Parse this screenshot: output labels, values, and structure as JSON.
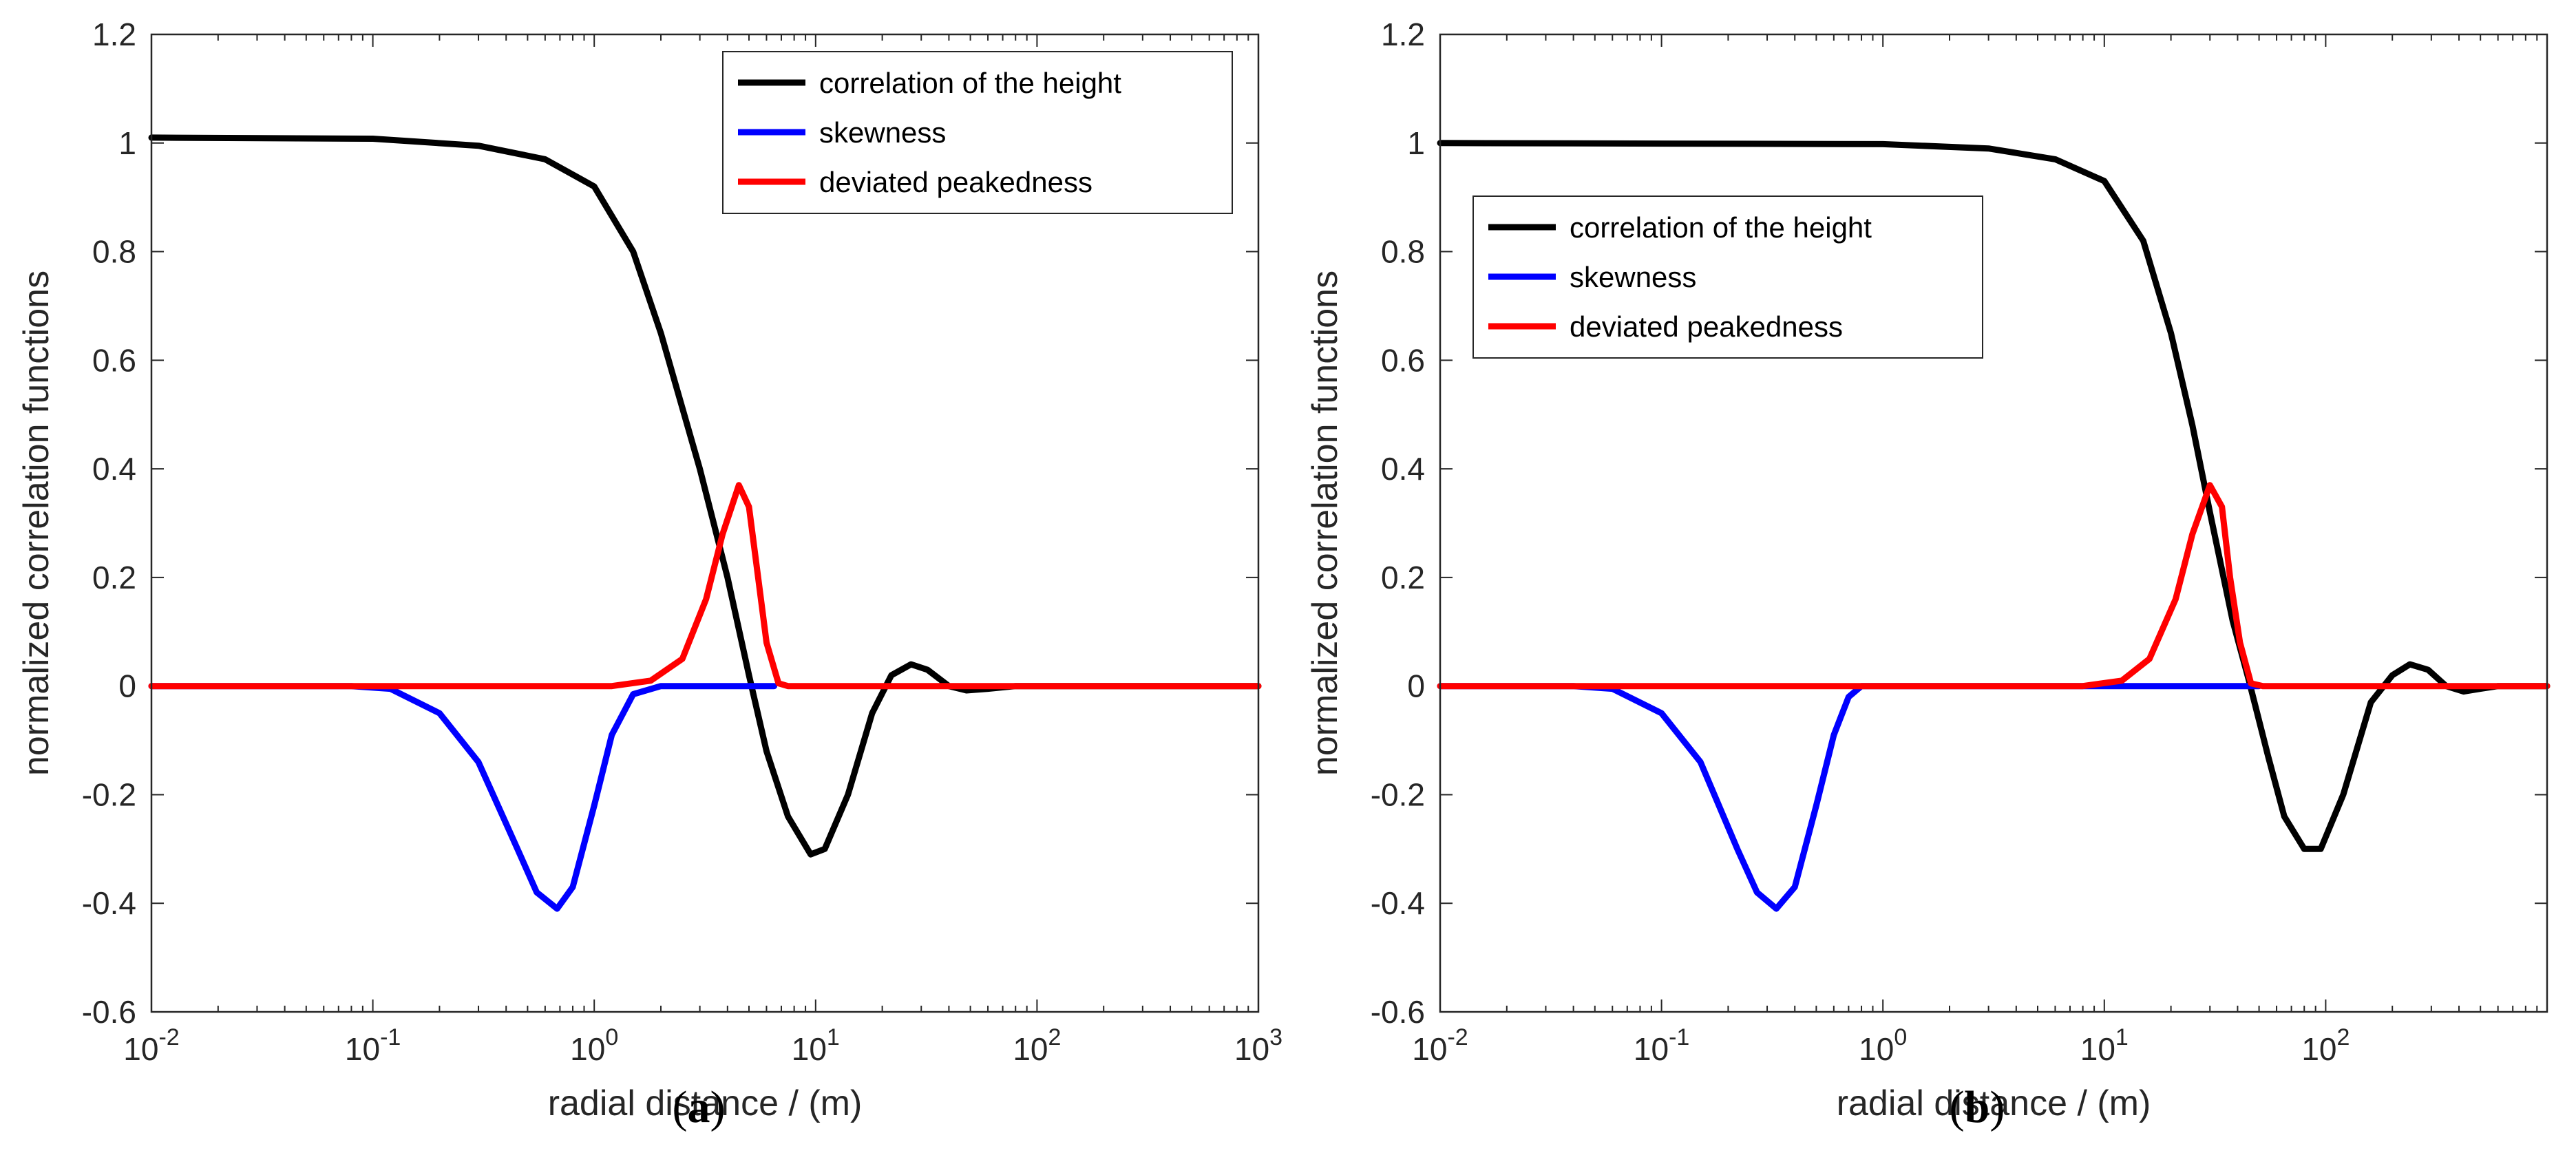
{
  "chart_data": [
    {
      "type": "line",
      "panel": "a",
      "caption": {
        "open": "(",
        "letter": "a",
        "close": ")"
      },
      "xscale": "log",
      "xlim": [
        0.01,
        1000
      ],
      "ylim": [
        -0.6,
        1.2
      ],
      "xticks": [
        {
          "value": 0.01,
          "base": "10",
          "exp": "-2"
        },
        {
          "value": 0.1,
          "base": "10",
          "exp": "-1"
        },
        {
          "value": 1,
          "base": "10",
          "exp": "0"
        },
        {
          "value": 10,
          "base": "10",
          "exp": "1"
        },
        {
          "value": 100,
          "base": "10",
          "exp": "2"
        },
        {
          "value": 1000,
          "base": "10",
          "exp": "3"
        }
      ],
      "yticks": [
        "-0.6",
        "-0.4",
        "-0.2",
        "0",
        "0.2",
        "0.4",
        "0.6",
        "0.8",
        "1",
        "1.2"
      ],
      "xlabel": "radial distance / (m)",
      "ylabel": "normalized correlation functions",
      "legend": {
        "position": "top-right",
        "entries": [
          "correlation of the height",
          "skewness",
          "deviated peakedness"
        ]
      },
      "series": [
        {
          "name": "correlation of the height",
          "color": "#000000",
          "points": [
            [
              0.01,
              1.01
            ],
            [
              0.1,
              1.008
            ],
            [
              0.3,
              0.995
            ],
            [
              0.6,
              0.97
            ],
            [
              1,
              0.92
            ],
            [
              1.5,
              0.8
            ],
            [
              2,
              0.65
            ],
            [
              3,
              0.4
            ],
            [
              4,
              0.2
            ],
            [
              5,
              0.02
            ],
            [
              6,
              -0.12
            ],
            [
              7.5,
              -0.24
            ],
            [
              9.5,
              -0.31
            ],
            [
              11,
              -0.3
            ],
            [
              14,
              -0.2
            ],
            [
              18,
              -0.05
            ],
            [
              22,
              0.02
            ],
            [
              27,
              0.04
            ],
            [
              32,
              0.03
            ],
            [
              40,
              0.0
            ],
            [
              48,
              -0.008
            ],
            [
              60,
              -0.005
            ],
            [
              80,
              0.0
            ],
            [
              1000,
              0.0
            ]
          ]
        },
        {
          "name": "skewness",
          "color": "#0000ff",
          "points": [
            [
              0.01,
              0.0
            ],
            [
              0.08,
              0.0
            ],
            [
              0.12,
              -0.005
            ],
            [
              0.2,
              -0.05
            ],
            [
              0.3,
              -0.14
            ],
            [
              0.45,
              -0.3
            ],
            [
              0.55,
              -0.38
            ],
            [
              0.68,
              -0.41
            ],
            [
              0.8,
              -0.37
            ],
            [
              1.0,
              -0.22
            ],
            [
              1.2,
              -0.09
            ],
            [
              1.5,
              -0.015
            ],
            [
              2.0,
              0.0
            ],
            [
              6.5,
              0.0
            ]
          ]
        },
        {
          "name": "deviated peakedness",
          "color": "#ff0000",
          "points": [
            [
              0.01,
              0.0
            ],
            [
              1.2,
              0.0
            ],
            [
              1.8,
              0.01
            ],
            [
              2.5,
              0.05
            ],
            [
              3.2,
              0.16
            ],
            [
              3.8,
              0.28
            ],
            [
              4.5,
              0.37
            ],
            [
              5.0,
              0.33
            ],
            [
              5.5,
              0.2
            ],
            [
              6.0,
              0.08
            ],
            [
              6.8,
              0.005
            ],
            [
              7.5,
              0.0
            ],
            [
              1000,
              0.0
            ]
          ]
        }
      ]
    },
    {
      "type": "line",
      "panel": "b",
      "caption": {
        "open": "(",
        "letter": "b",
        "close": ")"
      },
      "xscale": "log",
      "xlim": [
        0.01,
        1000
      ],
      "ylim": [
        -0.6,
        1.2
      ],
      "xticks": [
        {
          "value": 0.01,
          "base": "10",
          "exp": "-2"
        },
        {
          "value": 0.1,
          "base": "10",
          "exp": "-1"
        },
        {
          "value": 1,
          "base": "10",
          "exp": "0"
        },
        {
          "value": 10,
          "base": "10",
          "exp": "1"
        },
        {
          "value": 100,
          "base": "10",
          "exp": "2"
        }
      ],
      "yticks": [
        "-0.6",
        "-0.4",
        "-0.2",
        "0",
        "0.2",
        "0.4",
        "0.6",
        "0.8",
        "1",
        "1.2"
      ],
      "xlabel": "radial distance / (m)",
      "ylabel": "normalized correlation functions",
      "legend": {
        "position": "upper-left",
        "entries": [
          "correlation of the height",
          "skewness",
          "deviated peakedness"
        ]
      },
      "series": [
        {
          "name": "correlation of the height",
          "color": "#000000",
          "points": [
            [
              0.01,
              1.0
            ],
            [
              1,
              0.998
            ],
            [
              3,
              0.99
            ],
            [
              6,
              0.97
            ],
            [
              10,
              0.93
            ],
            [
              15,
              0.82
            ],
            [
              20,
              0.65
            ],
            [
              25,
              0.48
            ],
            [
              30,
              0.32
            ],
            [
              38,
              0.12
            ],
            [
              45,
              0.01
            ],
            [
              55,
              -0.13
            ],
            [
              65,
              -0.24
            ],
            [
              80,
              -0.3
            ],
            [
              95,
              -0.3
            ],
            [
              120,
              -0.2
            ],
            [
              160,
              -0.03
            ],
            [
              200,
              0.02
            ],
            [
              240,
              0.04
            ],
            [
              290,
              0.03
            ],
            [
              350,
              0.0
            ],
            [
              420,
              -0.01
            ],
            [
              500,
              -0.005
            ],
            [
              600,
              0.0
            ],
            [
              1000,
              0.0
            ]
          ]
        },
        {
          "name": "skewness",
          "color": "#0000ff",
          "points": [
            [
              0.01,
              0.0
            ],
            [
              0.04,
              0.0
            ],
            [
              0.06,
              -0.005
            ],
            [
              0.1,
              -0.05
            ],
            [
              0.15,
              -0.14
            ],
            [
              0.22,
              -0.3
            ],
            [
              0.27,
              -0.38
            ],
            [
              0.33,
              -0.41
            ],
            [
              0.4,
              -0.37
            ],
            [
              0.5,
              -0.22
            ],
            [
              0.6,
              -0.09
            ],
            [
              0.7,
              -0.02
            ],
            [
              0.8,
              0.0
            ],
            [
              50,
              0.0
            ]
          ]
        },
        {
          "name": "deviated peakedness",
          "color": "#ff0000",
          "points": [
            [
              0.01,
              0.0
            ],
            [
              8,
              0.0
            ],
            [
              12,
              0.01
            ],
            [
              16,
              0.05
            ],
            [
              21,
              0.16
            ],
            [
              25,
              0.28
            ],
            [
              30,
              0.37
            ],
            [
              34,
              0.33
            ],
            [
              37,
              0.2
            ],
            [
              41,
              0.08
            ],
            [
              46,
              0.005
            ],
            [
              52,
              0.0
            ],
            [
              1000,
              0.0
            ]
          ]
        }
      ]
    }
  ]
}
